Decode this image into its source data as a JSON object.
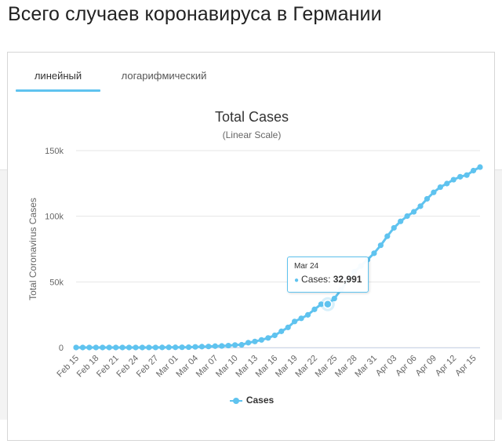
{
  "page": {
    "title": "Всего случаев коронавируса в Германии"
  },
  "tabs": [
    {
      "label": "линейный",
      "active": true
    },
    {
      "label": "логарифмический",
      "active": false
    }
  ],
  "chart_data": {
    "type": "line",
    "title": "Total Cases",
    "subtitle": "(Linear Scale)",
    "ylabel": "Total Coronavirus Cases",
    "xlabel": "",
    "ylim": [
      0,
      150000
    ],
    "y_ticks": [
      {
        "value": 0,
        "label": "0"
      },
      {
        "value": 50000,
        "label": "50k"
      },
      {
        "value": 100000,
        "label": "100k"
      },
      {
        "value": 150000,
        "label": "150k"
      }
    ],
    "x_tick_labels": [
      "Feb 15",
      "Feb 18",
      "Feb 21",
      "Feb 24",
      "Feb 27",
      "Mar 01",
      "Mar 04",
      "Mar 07",
      "Mar 10",
      "Mar 13",
      "Mar 16",
      "Mar 19",
      "Mar 22",
      "Mar 25",
      "Mar 28",
      "Mar 31",
      "Apr 03",
      "Apr 06",
      "Apr 09",
      "Apr 12",
      "Apr 15"
    ],
    "grid": true,
    "legend_position": "bottom-center",
    "color": "#5fc3ef",
    "x": [
      "Feb 15",
      "Feb 16",
      "Feb 17",
      "Feb 18",
      "Feb 19",
      "Feb 20",
      "Feb 21",
      "Feb 22",
      "Feb 23",
      "Feb 24",
      "Feb 25",
      "Feb 26",
      "Feb 27",
      "Feb 28",
      "Feb 29",
      "Mar 01",
      "Mar 02",
      "Mar 03",
      "Mar 04",
      "Mar 05",
      "Mar 06",
      "Mar 07",
      "Mar 08",
      "Mar 09",
      "Mar 10",
      "Mar 11",
      "Mar 12",
      "Mar 13",
      "Mar 14",
      "Mar 15",
      "Mar 16",
      "Mar 17",
      "Mar 18",
      "Mar 19",
      "Mar 20",
      "Mar 21",
      "Mar 22",
      "Mar 23",
      "Mar 24",
      "Mar 25",
      "Mar 26",
      "Mar 27",
      "Mar 28",
      "Mar 29",
      "Mar 30",
      "Mar 31",
      "Apr 01",
      "Apr 02",
      "Apr 03",
      "Apr 04",
      "Apr 05",
      "Apr 06",
      "Apr 07",
      "Apr 08",
      "Apr 09",
      "Apr 10",
      "Apr 11",
      "Apr 12",
      "Apr 13",
      "Apr 14",
      "Apr 15",
      "Apr 16"
    ],
    "series": [
      {
        "name": "Cases",
        "values": [
          16,
          16,
          16,
          16,
          16,
          16,
          16,
          16,
          16,
          16,
          18,
          26,
          48,
          79,
          130,
          159,
          196,
          262,
          482,
          670,
          799,
          1040,
          1176,
          1457,
          1908,
          2078,
          3675,
          4585,
          5795,
          7272,
          9257,
          12327,
          15320,
          19848,
          22213,
          24873,
          29056,
          32986,
          32991,
          37323,
          43938,
          50871,
          57695,
          62095,
          66885,
          71808,
          77872,
          84794,
          91159,
          96092,
          100123,
          103374,
          107663,
          113296,
          118181,
          122171,
          124908,
          127854,
          130072,
          131359,
          134753,
          137439
        ]
      }
    ],
    "tooltip": {
      "date": "Mar 24",
      "series": "Cases",
      "value": "32,991",
      "index": 38
    }
  }
}
